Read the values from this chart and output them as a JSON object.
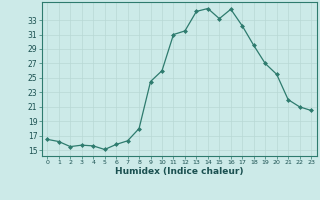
{
  "x": [
    0,
    1,
    2,
    3,
    4,
    5,
    6,
    7,
    8,
    9,
    10,
    11,
    12,
    13,
    14,
    15,
    16,
    17,
    18,
    19,
    20,
    21,
    22,
    23
  ],
  "y": [
    16.5,
    16.2,
    15.5,
    15.7,
    15.6,
    15.1,
    15.8,
    16.3,
    18.0,
    24.5,
    26.0,
    31.0,
    31.5,
    34.2,
    34.6,
    33.2,
    34.5,
    32.2,
    29.5,
    27.0,
    25.5,
    22.0,
    21.0,
    20.5
  ],
  "line_color": "#2e7b6e",
  "marker": "D",
  "marker_size": 2,
  "bg_color": "#cceae8",
  "grid_color": "#b8d8d5",
  "xlabel": "Humidex (Indice chaleur)",
  "yticks": [
    15,
    17,
    19,
    21,
    23,
    25,
    27,
    29,
    31,
    33
  ],
  "ylim": [
    14.2,
    35.5
  ],
  "xlim": [
    -0.5,
    23.5
  ],
  "xticks": [
    0,
    1,
    2,
    3,
    4,
    5,
    6,
    7,
    8,
    9,
    10,
    11,
    12,
    13,
    14,
    15,
    16,
    17,
    18,
    19,
    20,
    21,
    22,
    23
  ]
}
